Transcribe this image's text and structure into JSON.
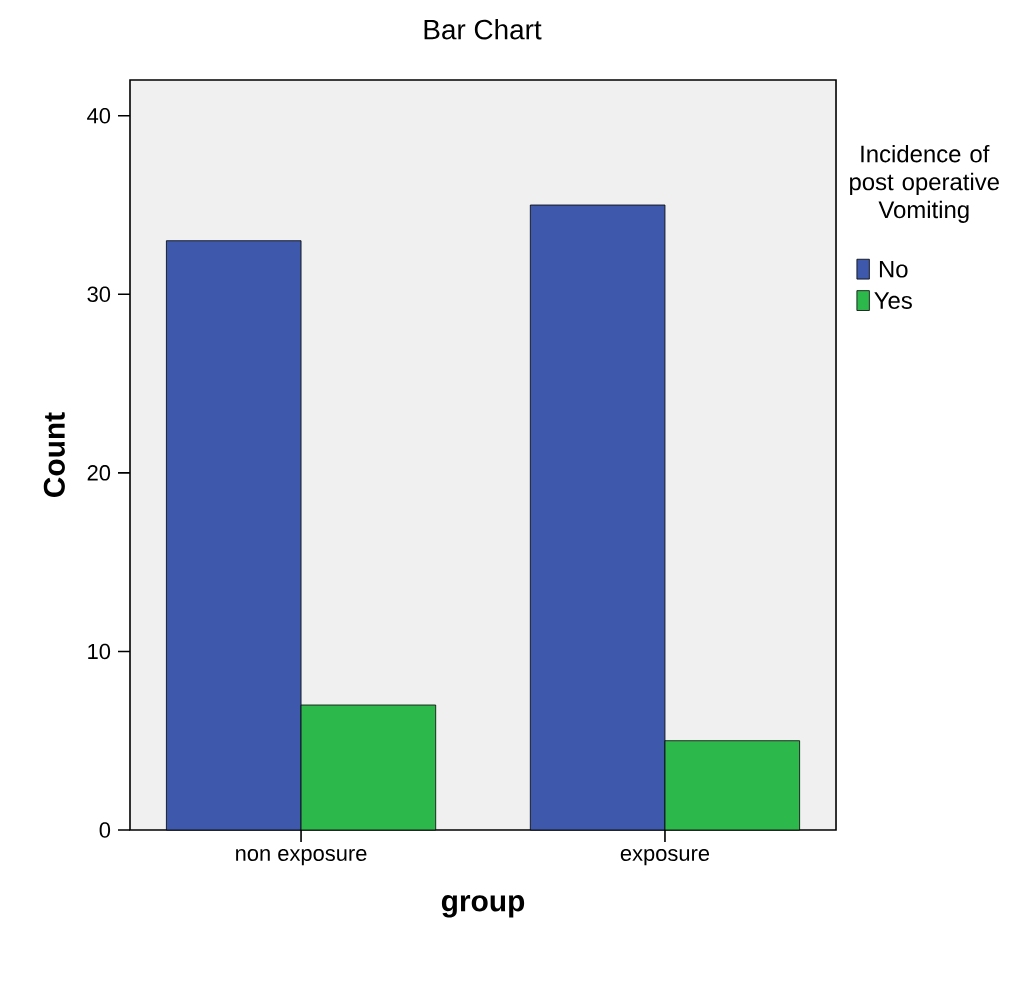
{
  "chart_data": {
    "type": "bar",
    "title": "Bar Chart",
    "xlabel": "group",
    "ylabel": "Count",
    "legend_title": "Incidence of post operative Vomiting",
    "categories": [
      "non exposure",
      "exposure"
    ],
    "series": [
      {
        "name": "No",
        "color": "#3e58ac",
        "values": [
          33,
          35
        ]
      },
      {
        "name": "Yes",
        "color": "#2db84b",
        "values": [
          7,
          5
        ]
      }
    ],
    "ylim": [
      0,
      42
    ],
    "yticks": [
      0,
      10,
      20,
      30,
      40
    ],
    "grid": false,
    "legend": "right"
  }
}
